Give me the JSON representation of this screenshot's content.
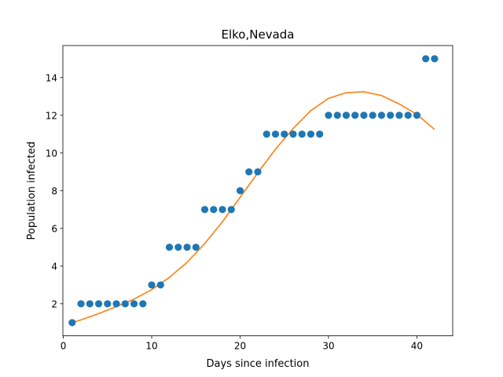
{
  "chart_data": {
    "type": "scatter",
    "title": "Elko,Nevada",
    "xlabel": "Days since infection",
    "ylabel": "Population infected",
    "xlim": [
      -0.05,
      44.05
    ],
    "ylim": [
      0.3,
      15.7
    ],
    "xticks": [
      0,
      10,
      20,
      30,
      40
    ],
    "yticks": [
      2,
      4,
      6,
      8,
      10,
      12,
      14
    ],
    "grid": false,
    "series": [
      {
        "kind": "points",
        "color": "#1f77b4",
        "x": [
          1,
          2,
          3,
          4,
          5,
          6,
          7,
          8,
          9,
          10,
          11,
          12,
          13,
          14,
          15,
          16,
          17,
          18,
          19,
          20,
          21,
          22,
          23,
          24,
          25,
          26,
          27,
          28,
          29,
          30,
          31,
          32,
          33,
          34,
          35,
          36,
          37,
          38,
          39,
          40,
          41,
          42
        ],
        "y": [
          1,
          2,
          2,
          2,
          2,
          2,
          2,
          2,
          2,
          3,
          3,
          5,
          5,
          5,
          5,
          7,
          7,
          7,
          7,
          8,
          9,
          9,
          11,
          11,
          11,
          11,
          11,
          11,
          11,
          12,
          12,
          12,
          12,
          12,
          12,
          12,
          12,
          12,
          12,
          12,
          15,
          15
        ]
      },
      {
        "kind": "fit-line",
        "color": "#ff7f0e",
        "x": [
          1,
          2,
          4,
          6,
          8,
          10,
          12,
          14,
          16,
          18,
          20,
          22,
          24,
          26,
          28,
          30,
          32,
          34,
          36,
          38,
          40,
          42
        ],
        "y": [
          1.0,
          1.15,
          1.48,
          1.85,
          2.25,
          2.75,
          3.4,
          4.2,
          5.2,
          6.35,
          7.65,
          8.95,
          10.2,
          11.3,
          12.25,
          12.9,
          13.2,
          13.25,
          13.05,
          12.6,
          12.05,
          11.25
        ]
      }
    ]
  }
}
